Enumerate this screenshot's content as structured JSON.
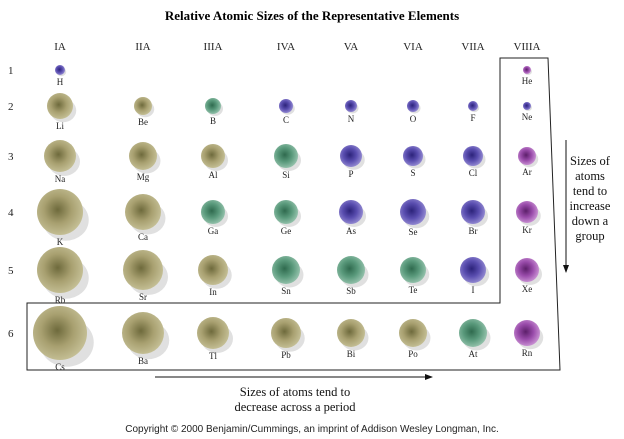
{
  "title": "Relative Atomic Sizes of the Representative Elements",
  "groups": [
    "IA",
    "IIA",
    "IIIA",
    "IVA",
    "VA",
    "VIA",
    "VIIA",
    "VIIIA"
  ],
  "periods": [
    "1",
    "2",
    "3",
    "4",
    "5",
    "6"
  ],
  "elements": [
    [
      "H",
      null,
      null,
      null,
      null,
      null,
      null,
      "He"
    ],
    [
      "Li",
      "Be",
      "B",
      "C",
      "N",
      "O",
      "F",
      "Ne"
    ],
    [
      "Na",
      "Mg",
      "Al",
      "Si",
      "P",
      "S",
      "Cl",
      "Ar"
    ],
    [
      "K",
      "Ca",
      "Ga",
      "Ge",
      "As",
      "Se",
      "Br",
      "Kr"
    ],
    [
      "Rb",
      "Sr",
      "In",
      "Sn",
      "Sb",
      "Te",
      "I",
      "Xe"
    ],
    [
      "Cs",
      "Ba",
      "Tl",
      "Pb",
      "Bi",
      "Po",
      "At",
      "Rn"
    ]
  ],
  "down_note": [
    "Sizes of",
    "atoms",
    "tend to",
    "increase",
    "down a",
    "group"
  ],
  "across_note": [
    "Sizes of atoms tend to",
    "decrease across a period"
  ],
  "copyright": "Copyright © 2000 Benjamin/Cummings, an imprint of Addison Wesley Longman, Inc."
}
